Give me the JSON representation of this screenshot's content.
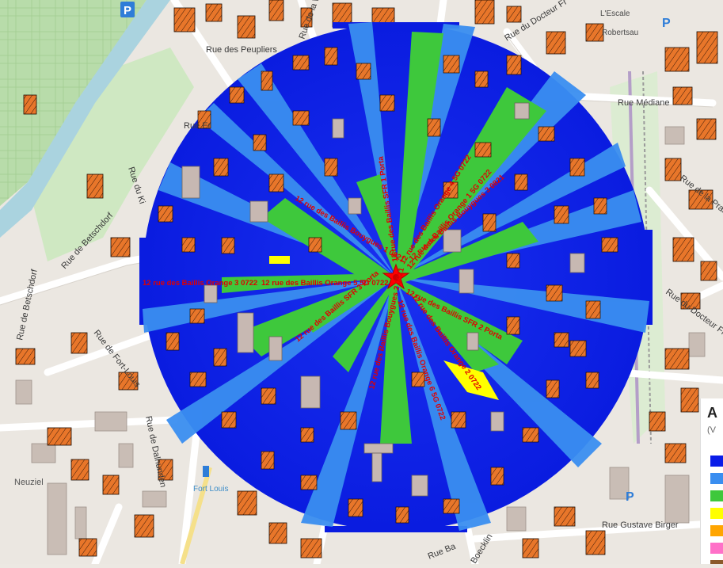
{
  "map": {
    "streets": [
      {
        "name": "Rue des Peupliers"
      },
      {
        "name": "Rue de la W"
      },
      {
        "name": "Rue du Docteur Fr"
      },
      {
        "name": "Rue Médiane"
      },
      {
        "name": "Rue de Betschdorf"
      },
      {
        "name": "Rue de Betschdorf"
      },
      {
        "name": "Rue de Fort-Louis"
      },
      {
        "name": "Rue de Dalhunden"
      },
      {
        "name": "Rue du Docteur Fr"
      },
      {
        "name": "Rue Gustave Birger"
      },
      {
        "name": "Rue de la Prairie"
      },
      {
        "name": "Rue du Ki"
      },
      {
        "name": "Rue Er"
      },
      {
        "name": "Rue Ba"
      },
      {
        "name": "Boecklin"
      }
    ],
    "pois": {
      "fort_louis": "Fort Louis",
      "neuziel": "Neuziel",
      "robertsau": "Robertsau",
      "lescale": "L'Escale",
      "parking": "P"
    },
    "antenna": {
      "sectors": [
        "12 rue des Baillis Orange 3 0722",
        "12 rue des Baillis Orange 5 5G 0722",
        "12 rue des Baillis Bouygues 1 0821",
        "12 rue des Baillis SFR 1 Porta",
        "12 rue des Baillis Orange 1 5G 0722",
        "12 rue des Baillis Bouygues 3 0821",
        "12 rue des Baillis Orange 4 5G 0722",
        "12 rue des Baillis SFR 3 Porta",
        "12 rue des Baillis Bouygues 2 0821",
        "12 rue des Baillis Orange 6 5G 0722",
        "12 rue des Baillis SFR 2 Porta",
        "12 rue des Baillis Orange 2 0722"
      ]
    }
  },
  "legend": {
    "title": "A",
    "subtitle": "(V",
    "colors": [
      "#0a1ce8",
      "#3a8ef0",
      "#3ec83c",
      "#ffff00",
      "#ffa500",
      "#ff70c8",
      "#8b5a2b"
    ]
  }
}
